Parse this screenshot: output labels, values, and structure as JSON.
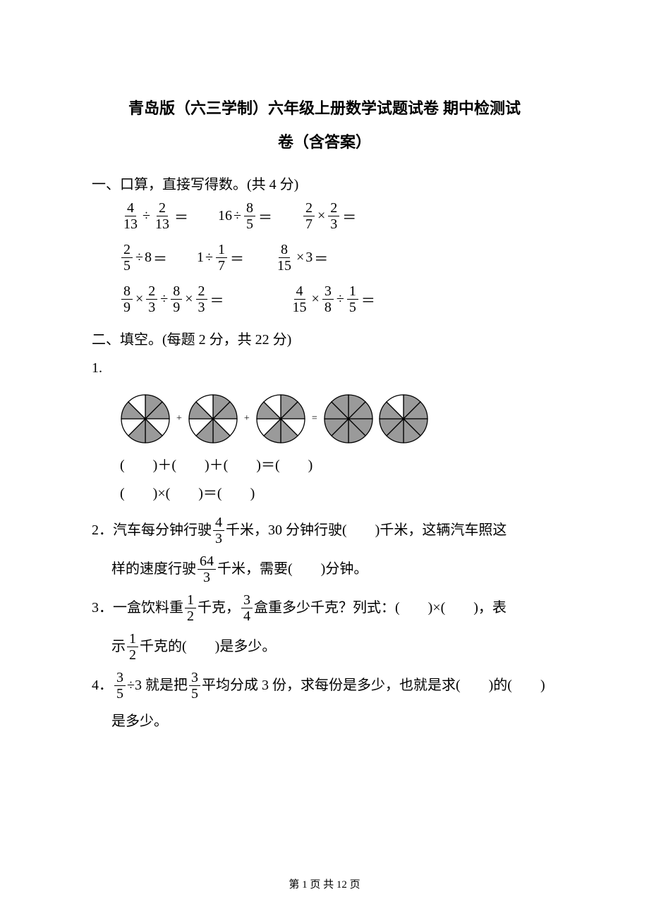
{
  "title_line1": "青岛版（六三学制）六年级上册数学试题试卷 期中检测试",
  "title_line2": "卷（含答案）",
  "section1": {
    "heading": "一、口算，直接写得数。(共 4 分)",
    "rows": [
      [
        {
          "parts": [
            {
              "t": "frac",
              "n": "4",
              "d": "13"
            },
            {
              "t": "op",
              "v": "÷"
            },
            {
              "t": "frac",
              "n": "2",
              "d": "13"
            },
            {
              "t": "op",
              "v": "＝"
            }
          ]
        },
        {
          "parts": [
            {
              "t": "text",
              "v": "16"
            },
            {
              "t": "op",
              "v": "÷"
            },
            {
              "t": "frac",
              "n": "8",
              "d": "5"
            },
            {
              "t": "op",
              "v": "＝"
            }
          ]
        },
        {
          "parts": [
            {
              "t": "frac",
              "n": "2",
              "d": "7"
            },
            {
              "t": "op",
              "v": "×"
            },
            {
              "t": "frac",
              "n": "2",
              "d": "3"
            },
            {
              "t": "op",
              "v": "＝"
            }
          ]
        }
      ],
      [
        {
          "parts": [
            {
              "t": "frac",
              "n": "2",
              "d": "5"
            },
            {
              "t": "op",
              "v": "÷"
            },
            {
              "t": "text",
              "v": "8"
            },
            {
              "t": "op",
              "v": "＝"
            }
          ]
        },
        {
          "parts": [
            {
              "t": "text",
              "v": "1"
            },
            {
              "t": "op",
              "v": "÷"
            },
            {
              "t": "frac",
              "n": "1",
              "d": "7"
            },
            {
              "t": "op",
              "v": "＝"
            }
          ]
        },
        {
          "parts": [
            {
              "t": "frac",
              "n": "8",
              "d": "15"
            },
            {
              "t": "op",
              "v": "×"
            },
            {
              "t": "text",
              "v": "3"
            },
            {
              "t": "op",
              "v": "＝"
            }
          ]
        }
      ],
      [
        {
          "parts": [
            {
              "t": "frac",
              "n": "8",
              "d": "9"
            },
            {
              "t": "op",
              "v": "×"
            },
            {
              "t": "frac",
              "n": "2",
              "d": "3"
            },
            {
              "t": "op",
              "v": "÷"
            },
            {
              "t": "frac",
              "n": "8",
              "d": "9"
            },
            {
              "t": "op",
              "v": "×"
            },
            {
              "t": "frac",
              "n": "2",
              "d": "3"
            },
            {
              "t": "op",
              "v": "＝"
            }
          ],
          "wide": true
        },
        {
          "parts": [
            {
              "t": "frac",
              "n": "4",
              "d": "15"
            },
            {
              "t": "op",
              "v": "×"
            },
            {
              "t": "frac",
              "n": "3",
              "d": "8"
            },
            {
              "t": "op",
              "v": "÷"
            },
            {
              "t": "frac",
              "n": "1",
              "d": "5"
            },
            {
              "t": "op",
              "v": "＝"
            }
          ]
        }
      ]
    ]
  },
  "section2": {
    "heading": "二、填空。(每题 2 分，共 22 分)",
    "q1": {
      "num": "1.",
      "pies": {
        "slices": 8,
        "fill_color": "#9a9a9a",
        "stroke_color": "#000000",
        "radius": 34,
        "items": [
          {
            "shaded": [
              0,
              1,
              3,
              4,
              6
            ]
          },
          {
            "shaded": [
              0,
              1,
              3,
              4,
              6
            ]
          },
          {
            "shaded": [
              0,
              1,
              3,
              4,
              6
            ]
          },
          {
            "shaded": [
              0,
              1,
              2,
              3,
              4,
              5,
              6,
              7
            ]
          },
          {
            "shaded": [
              0,
              1,
              2,
              3,
              4,
              5,
              6
            ]
          }
        ],
        "ops": [
          "+",
          "+",
          "=",
          ""
        ]
      },
      "line1": "(　　)＋(　　)＋(　　)＝(　　)",
      "line2": "(　　)×(　　)＝(　　)"
    },
    "q2": {
      "pre": "2．汽车每分钟行驶",
      "frac1": {
        "n": "4",
        "d": "3"
      },
      "mid1": "千米，30 分钟行驶(　　)千米，这辆汽车照这",
      "line2_pre": "样的速度行驶",
      "frac2": {
        "n": "64",
        "d": "3"
      },
      "line2_post": "千米，需要(　　)分钟。"
    },
    "q3": {
      "pre": "3．一盒饮料重",
      "frac1": {
        "n": "1",
        "d": "2"
      },
      "mid1": "千克，",
      "frac2": {
        "n": "3",
        "d": "4"
      },
      "mid2": "盒重多少千克？列式：(　　)×(　　)，表",
      "line2_pre": "示",
      "frac3": {
        "n": "1",
        "d": "2"
      },
      "line2_post": "千克的(　　)是多少。"
    },
    "q4": {
      "pre": "4．",
      "frac1": {
        "n": "3",
        "d": "5"
      },
      "mid1": "÷3 就是把",
      "frac2": {
        "n": "3",
        "d": "5"
      },
      "mid2": "平均分成 3 份，求每份是多少，也就是求(　　)的(　　)",
      "line2": "是多少。"
    }
  },
  "footer": "第 1 页 共 12 页"
}
